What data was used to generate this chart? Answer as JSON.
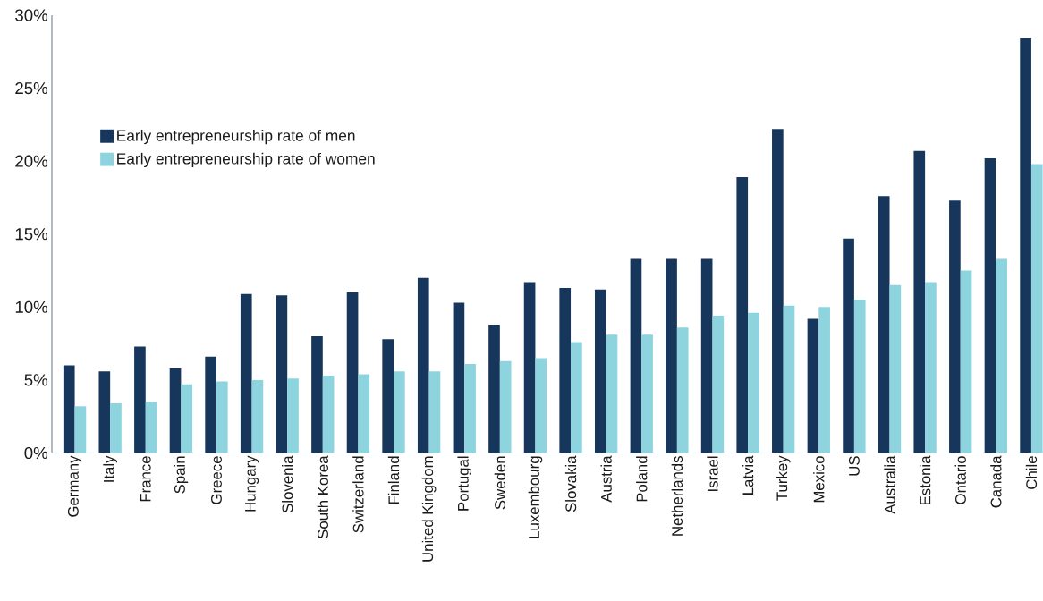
{
  "chart_data": {
    "type": "bar",
    "categories": [
      "Germany",
      "Italy",
      "France",
      "Spain",
      "Greece",
      "Hungary",
      "Slovenia",
      "South Korea",
      "Switzerland",
      "Finland",
      "United Kingdom",
      "Portugal",
      "Sweden",
      "Luxembourg",
      "Slovakia",
      "Austria",
      "Poland",
      "Netherlands",
      "Israel",
      "Latvia",
      "Turkey",
      "Mexico",
      "US",
      "Australia",
      "Estonia",
      "Ontario",
      "Canada",
      "Chile"
    ],
    "series": [
      {
        "name": "Early entrepreneurship rate of men",
        "color": "#17365c",
        "values": [
          6.0,
          5.6,
          7.3,
          5.8,
          6.6,
          10.9,
          10.8,
          8.0,
          11.0,
          7.8,
          12.0,
          10.3,
          8.8,
          11.7,
          11.3,
          11.2,
          13.3,
          13.3,
          13.3,
          18.9,
          22.2,
          9.2,
          14.7,
          17.6,
          20.7,
          17.3,
          20.2,
          28.4
        ]
      },
      {
        "name": "Early entrepreneurship rate of women",
        "color": "#8dd4df",
        "values": [
          3.2,
          3.4,
          3.5,
          4.7,
          4.9,
          5.0,
          5.1,
          5.3,
          5.4,
          5.6,
          5.6,
          6.1,
          6.3,
          6.5,
          7.6,
          8.1,
          8.1,
          8.6,
          9.4,
          9.6,
          10.1,
          10.0,
          10.5,
          11.5,
          11.7,
          12.5,
          13.3,
          19.8
        ]
      }
    ],
    "ylim": [
      0,
      30
    ],
    "yticks": [
      {
        "value": 0,
        "label": "0%"
      },
      {
        "value": 5,
        "label": "5%"
      },
      {
        "value": 10,
        "label": "10%"
      },
      {
        "value": 15,
        "label": "15%"
      },
      {
        "value": 20,
        "label": "20%"
      },
      {
        "value": 25,
        "label": "25%"
      },
      {
        "value": 30,
        "label": "30%"
      }
    ],
    "legend": "top left"
  }
}
